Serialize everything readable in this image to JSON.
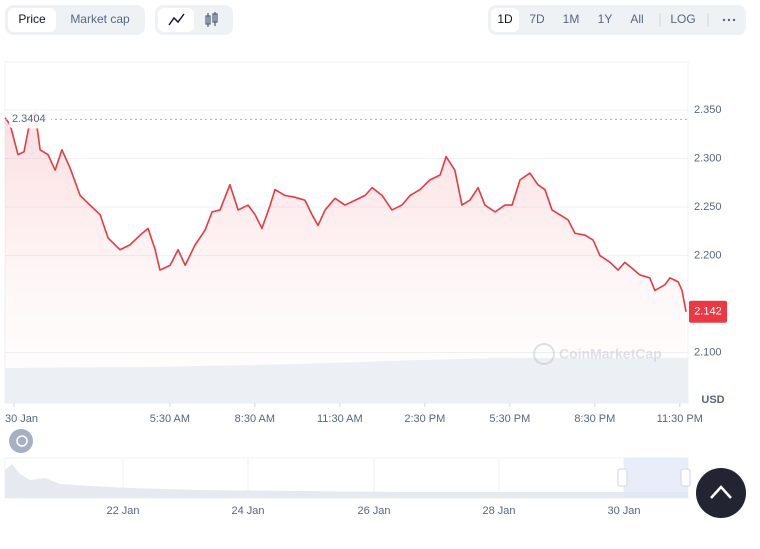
{
  "toolbar": {
    "tabs": [
      "Price",
      "Market cap"
    ],
    "ranges": [
      "1D",
      "7D",
      "1M",
      "1Y",
      "All",
      "LOG"
    ]
  },
  "chart_data": {
    "type": "line",
    "x": [
      -0.32,
      -0.14,
      0.14,
      0.35,
      0.56,
      0.74,
      0.92,
      1.2,
      1.45,
      1.69,
      1.98,
      2.33,
      2.68,
      3.04,
      3.32,
      3.74,
      4.09,
      4.45,
      4.73,
      4.98,
      5.15,
      5.51,
      5.79,
      6.04,
      6.39,
      6.74,
      6.99,
      7.27,
      7.62,
      7.91,
      8.26,
      8.51,
      8.75,
      9.04,
      9.21,
      9.56,
      9.92,
      10.27,
      10.52,
      10.73,
      10.98,
      11.33,
      11.68,
      12.04,
      12.39,
      12.64,
      12.99,
      13.34,
      13.69,
      13.98,
      14.33,
      14.68,
      15.04,
      15.25,
      15.56,
      15.81,
      16.09,
      16.38,
      16.62,
      16.98,
      17.33,
      17.58,
      17.86,
      18.21,
      18.49,
      18.74,
      18.99,
      19.27,
      19.55,
      19.8,
      20.16,
      20.44,
      20.68,
      21.04,
      21.32,
      21.56,
      21.81,
      22.09,
      22.44,
      22.62,
      22.98,
      23.15,
      23.44,
      23.58,
      23.72
    ],
    "series": [
      {
        "color": "#ea3943",
        "values": [
          2.342,
          2.335,
          2.304,
          2.307,
          2.338,
          2.348,
          2.309,
          2.304,
          2.288,
          2.309,
          2.29,
          2.262,
          2.252,
          2.242,
          2.218,
          2.206,
          2.211,
          2.221,
          2.228,
          2.206,
          2.185,
          2.19,
          2.206,
          2.19,
          2.211,
          2.226,
          2.245,
          2.247,
          2.273,
          2.247,
          2.252,
          2.242,
          2.228,
          2.252,
          2.268,
          2.262,
          2.26,
          2.257,
          2.242,
          2.231,
          2.247,
          2.259,
          2.252,
          2.257,
          2.262,
          2.27,
          2.262,
          2.247,
          2.252,
          2.262,
          2.268,
          2.278,
          2.283,
          2.302,
          2.288,
          2.252,
          2.257,
          2.27,
          2.252,
          2.245,
          2.252,
          2.252,
          2.278,
          2.285,
          2.273,
          2.268,
          2.247,
          2.242,
          2.237,
          2.223,
          2.221,
          2.216,
          2.2,
          2.193,
          2.185,
          2.193,
          2.187,
          2.18,
          2.177,
          2.164,
          2.17,
          2.177,
          2.173,
          2.164,
          2.142
        ]
      }
    ],
    "xlim": [
      -0.32,
      23.79
    ],
    "ylim": [
      2.048,
      2.3995
    ],
    "xticks": [
      {
        "value": 0,
        "label": "30 Jan"
      },
      {
        "value": 5.5,
        "label": "5:30 AM"
      },
      {
        "value": 8.5,
        "label": "8:30 AM"
      },
      {
        "value": 11.5,
        "label": "11:30 AM"
      },
      {
        "value": 14.5,
        "label": "2:30 PM"
      },
      {
        "value": 17.5,
        "label": "5:30 PM"
      },
      {
        "value": 20.5,
        "label": "8:30 PM"
      },
      {
        "value": 23.5,
        "label": "11:30 PM"
      }
    ],
    "yticks": [
      {
        "value": 2.35,
        "label": "2.350"
      },
      {
        "value": 2.3,
        "label": "2.300"
      },
      {
        "value": 2.25,
        "label": "2.250"
      },
      {
        "value": 2.2,
        "label": "2.200"
      },
      {
        "value": 2.1,
        "label": "2.100"
      }
    ],
    "y_unit": "USD",
    "reference_value": 2.3404,
    "grid": true,
    "watermark": "CoinMarketCap"
  },
  "navigator": {
    "labels": [
      "22 Jan",
      "24 Jan",
      "26 Jan",
      "28 Jan",
      "30 Jan"
    ]
  }
}
